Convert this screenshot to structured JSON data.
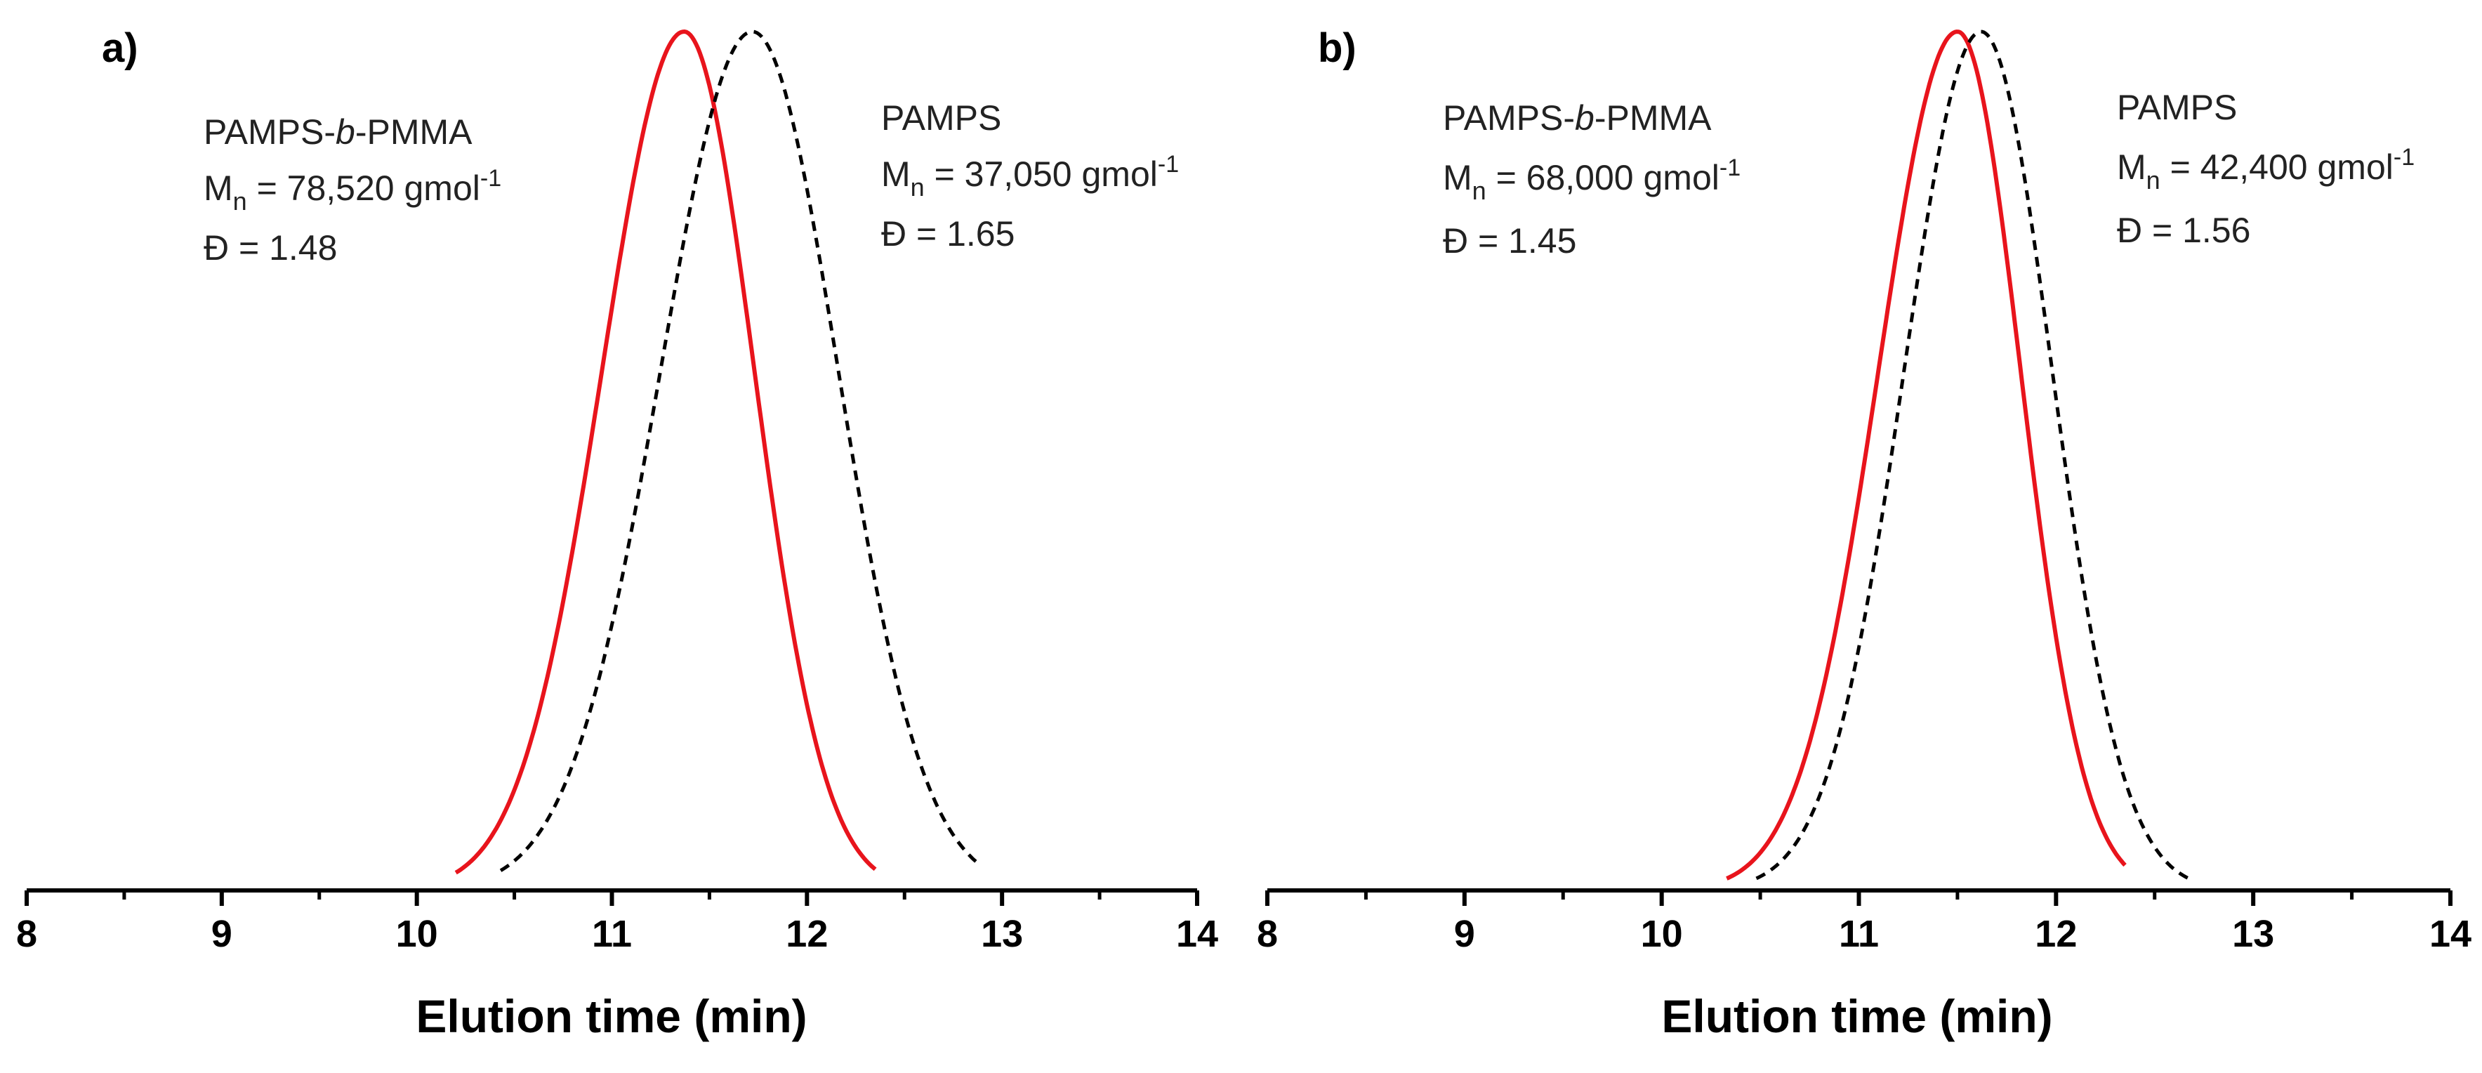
{
  "chart_data": [
    {
      "type": "line",
      "panel_label": "a)",
      "xlabel": "Elution time (min)",
      "ylabel": "",
      "xlim": [
        8,
        14
      ],
      "ylim": [
        0,
        1
      ],
      "x_ticks": [
        8,
        9,
        10,
        11,
        12,
        13,
        14
      ],
      "x_tick_labels": [
        "8",
        "9",
        "10",
        "11",
        "12",
        "13",
        "14"
      ],
      "grid": false,
      "series": [
        {
          "name": "PAMPS-b-PMMA",
          "style": "solid",
          "color": "#e8141c",
          "peak": 11.37,
          "start": 10.2,
          "end": 12.35,
          "sigma_left": 0.42,
          "sigma_right": 0.36
        },
        {
          "name": "PAMPS",
          "style": "dashed",
          "color": "#000000",
          "peak": 11.72,
          "start": 10.43,
          "end": 12.88,
          "sigma_left": 0.47,
          "sigma_right": 0.44
        }
      ],
      "annotations": [
        {
          "name_prefix": "PAMPS-",
          "name_italic": "b",
          "name_suffix": "-PMMA",
          "mn_prefix": "M",
          "mn_sub": "n",
          "mn_value": " = 78,520 gmol",
          "mn_sup": "-1",
          "dispersity": "Đ = 1.48"
        },
        {
          "name_prefix": "PAMPS",
          "name_italic": "",
          "name_suffix": "",
          "mn_prefix": "M",
          "mn_sub": "n",
          "mn_value": " = 37,050 gmol",
          "mn_sup": "-1",
          "dispersity": "Đ = 1.65"
        }
      ]
    },
    {
      "type": "line",
      "panel_label": "b)",
      "xlabel": "Elution time (min)",
      "ylabel": "",
      "xlim": [
        8,
        14
      ],
      "ylim": [
        0,
        1
      ],
      "x_ticks": [
        8,
        9,
        10,
        11,
        12,
        13,
        14
      ],
      "x_tick_labels": [
        "8",
        "9",
        "10",
        "11",
        "12",
        "13",
        "14"
      ],
      "grid": false,
      "series": [
        {
          "name": "PAMPS-b-PMMA",
          "style": "solid",
          "color": "#e8141c",
          "peak": 11.5,
          "start": 10.33,
          "end": 12.35,
          "sigma_left": 0.4,
          "sigma_right": 0.32
        },
        {
          "name": "PAMPS",
          "style": "dashed",
          "color": "#000000",
          "peak": 11.62,
          "start": 10.48,
          "end": 12.67,
          "sigma_left": 0.39,
          "sigma_right": 0.36
        }
      ],
      "annotations": [
        {
          "name_prefix": "PAMPS-",
          "name_italic": "b",
          "name_suffix": "-PMMA",
          "mn_prefix": "M",
          "mn_sub": "n",
          "mn_value": " = 68,000 gmol",
          "mn_sup": "-1",
          "dispersity": "Đ = 1.45"
        },
        {
          "name_prefix": "PAMPS",
          "name_italic": "",
          "name_suffix": "",
          "mn_prefix": "M",
          "mn_sub": "n",
          "mn_value": " = 42,400 gmol",
          "mn_sup": "-1",
          "dispersity": "Đ = 1.56"
        }
      ]
    }
  ]
}
